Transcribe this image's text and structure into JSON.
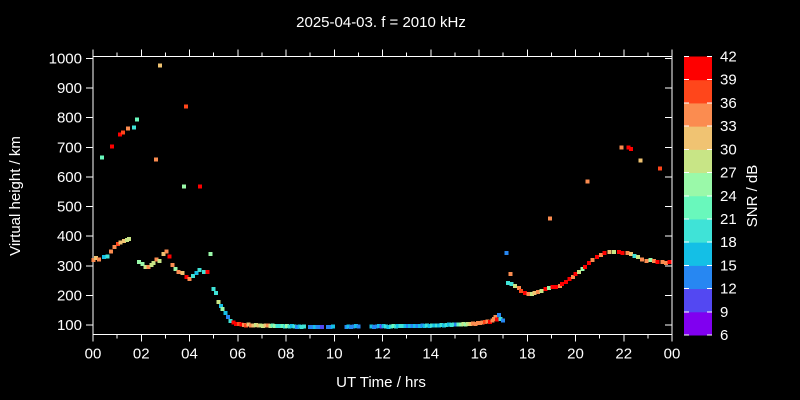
{
  "window": {
    "background_color": "#000000",
    "foreground_color": "#ffffff"
  },
  "chart_data": {
    "type": "scatter",
    "title": "2025-04-03. f = 2010 kHz",
    "date": "2025-04-03",
    "frequency_khz": 2010,
    "xlabel": "UT Time / hrs",
    "ylabel": "Virtual height / km",
    "x_range_hours": [
      0,
      24
    ],
    "x_major_tick_hours": [
      0,
      2,
      4,
      6,
      8,
      10,
      12,
      14,
      16,
      18,
      20,
      22,
      24
    ],
    "x_major_tick_labels": [
      "00",
      "02",
      "04",
      "06",
      "08",
      "10",
      "12",
      "14",
      "16",
      "18",
      "20",
      "22",
      "00"
    ],
    "x_minor_tick_hours": [
      1,
      3,
      5,
      7,
      9,
      11,
      13,
      15,
      17,
      19,
      21,
      23
    ],
    "y_tick_km": [
      100,
      200,
      300,
      400,
      500,
      600,
      700,
      800,
      900,
      1000
    ],
    "ylim_km": [
      70,
      1008
    ],
    "grid": false,
    "legend_position": "none",
    "colorbar": {
      "label": "SNR / dB",
      "tick_values": [
        6,
        9,
        12,
        15,
        18,
        21,
        24,
        27,
        30,
        33,
        36,
        39,
        42
      ],
      "bin_size_db": 3,
      "bin_colors_low_to_high": [
        "#8000F0",
        "#5348F2",
        "#2787F2",
        "#14BFE6",
        "#3FE3D7",
        "#69F8BC",
        "#9AF9A9",
        "#C8E586",
        "#F0C372",
        "#FB8C50",
        "#FF461B",
        "#FE0000"
      ]
    },
    "points_t_km_snr": [
      [
        0.02,
        319,
        34
      ],
      [
        0.12,
        326,
        31
      ],
      [
        0.25,
        322,
        34
      ],
      [
        0.37,
        666,
        22
      ],
      [
        0.46,
        329,
        16
      ],
      [
        0.6,
        332,
        19
      ],
      [
        0.75,
        348,
        34
      ],
      [
        0.79,
        703,
        40
      ],
      [
        0.9,
        363,
        34
      ],
      [
        1.03,
        373,
        37
      ],
      [
        1.12,
        743,
        40
      ],
      [
        1.15,
        378,
        31
      ],
      [
        1.24,
        750,
        37
      ],
      [
        1.28,
        383,
        31
      ],
      [
        1.4,
        387,
        28
      ],
      [
        1.45,
        764,
        34
      ],
      [
        1.49,
        390,
        28
      ],
      [
        1.7,
        767,
        19
      ],
      [
        1.82,
        794,
        22
      ],
      [
        1.9,
        312,
        25
      ],
      [
        2.06,
        306,
        25
      ],
      [
        2.18,
        296,
        28
      ],
      [
        2.3,
        296,
        34
      ],
      [
        2.42,
        302,
        28
      ],
      [
        2.51,
        309,
        28
      ],
      [
        2.61,
        659,
        34
      ],
      [
        2.63,
        322,
        34
      ],
      [
        2.76,
        316,
        28
      ],
      [
        2.78,
        976,
        31
      ],
      [
        2.92,
        339,
        31
      ],
      [
        3.05,
        349,
        34
      ],
      [
        3.17,
        332,
        40
      ],
      [
        3.3,
        302,
        34
      ],
      [
        3.42,
        289,
        25
      ],
      [
        3.55,
        279,
        34
      ],
      [
        3.7,
        276,
        31
      ],
      [
        3.77,
        568,
        25
      ],
      [
        3.86,
        838,
        37
      ],
      [
        3.87,
        262,
        40
      ],
      [
        4.0,
        256,
        34
      ],
      [
        4.15,
        266,
        19
      ],
      [
        4.3,
        276,
        16
      ],
      [
        4.42,
        286,
        19
      ],
      [
        4.43,
        568,
        40
      ],
      [
        4.6,
        279,
        19
      ],
      [
        4.75,
        279,
        40
      ],
      [
        4.88,
        339,
        25
      ],
      [
        5.0,
        221,
        19
      ],
      [
        5.1,
        208,
        19
      ],
      [
        5.2,
        178,
        28
      ],
      [
        5.3,
        164,
        16
      ],
      [
        5.37,
        154,
        25
      ],
      [
        5.5,
        140,
        16
      ],
      [
        5.6,
        127,
        13
      ],
      [
        5.7,
        113,
        19
      ],
      [
        5.83,
        108,
        40
      ],
      [
        5.93,
        103,
        40
      ],
      [
        6.05,
        103,
        37
      ],
      [
        6.15,
        101,
        40
      ],
      [
        6.25,
        100,
        34
      ],
      [
        6.35,
        99,
        37
      ],
      [
        6.45,
        101,
        31
      ],
      [
        6.55,
        99,
        34
      ],
      [
        6.65,
        98,
        31
      ],
      [
        6.75,
        100,
        28
      ],
      [
        6.85,
        99,
        31
      ],
      [
        6.95,
        98,
        28
      ],
      [
        7.05,
        97,
        28
      ],
      [
        7.15,
        99,
        31
      ],
      [
        7.25,
        98,
        34
      ],
      [
        7.35,
        97,
        28
      ],
      [
        7.45,
        98,
        22
      ],
      [
        7.55,
        97,
        25
      ],
      [
        7.65,
        96,
        19
      ],
      [
        7.75,
        97,
        19
      ],
      [
        7.85,
        96,
        22
      ],
      [
        7.95,
        95,
        19
      ],
      [
        8.05,
        96,
        25
      ],
      [
        8.15,
        95,
        19
      ],
      [
        8.25,
        96,
        16
      ],
      [
        8.35,
        95,
        19
      ],
      [
        8.45,
        94,
        13
      ],
      [
        8.55,
        95,
        16
      ],
      [
        8.65,
        94,
        19
      ],
      [
        8.75,
        95,
        19
      ],
      [
        9.0,
        94,
        13
      ],
      [
        9.1,
        93,
        13
      ],
      [
        9.2,
        94,
        16
      ],
      [
        9.3,
        93,
        13
      ],
      [
        9.4,
        94,
        13
      ],
      [
        9.5,
        93,
        10
      ],
      [
        9.75,
        93,
        13
      ],
      [
        9.85,
        94,
        13
      ],
      [
        9.95,
        95,
        16
      ],
      [
        10.5,
        94,
        13
      ],
      [
        10.6,
        95,
        16
      ],
      [
        10.7,
        94,
        13
      ],
      [
        10.8,
        95,
        13
      ],
      [
        10.9,
        96,
        16
      ],
      [
        11.0,
        95,
        13
      ],
      [
        11.55,
        95,
        16
      ],
      [
        11.65,
        94,
        13
      ],
      [
        11.75,
        95,
        13
      ],
      [
        11.85,
        96,
        16
      ],
      [
        11.95,
        95,
        10
      ],
      [
        12.05,
        96,
        16
      ],
      [
        12.15,
        95,
        19
      ],
      [
        12.25,
        94,
        16
      ],
      [
        12.35,
        95,
        19
      ],
      [
        12.45,
        96,
        22
      ],
      [
        12.55,
        95,
        19
      ],
      [
        12.65,
        96,
        16
      ],
      [
        12.75,
        97,
        19
      ],
      [
        12.85,
        96,
        19
      ],
      [
        12.95,
        97,
        16
      ],
      [
        13.05,
        96,
        13
      ],
      [
        13.15,
        97,
        16
      ],
      [
        13.25,
        96,
        13
      ],
      [
        13.35,
        97,
        16
      ],
      [
        13.45,
        96,
        13
      ],
      [
        13.55,
        97,
        16
      ],
      [
        13.65,
        98,
        13
      ],
      [
        13.75,
        97,
        16
      ],
      [
        13.85,
        98,
        19
      ],
      [
        13.95,
        97,
        16
      ],
      [
        14.05,
        98,
        19
      ],
      [
        14.15,
        99,
        16
      ],
      [
        14.25,
        98,
        19
      ],
      [
        14.35,
        99,
        16
      ],
      [
        14.45,
        100,
        19
      ],
      [
        14.55,
        99,
        16
      ],
      [
        14.65,
        100,
        19
      ],
      [
        14.75,
        101,
        16
      ],
      [
        14.85,
        100,
        19
      ],
      [
        14.95,
        101,
        19
      ],
      [
        15.05,
        102,
        13
      ],
      [
        15.15,
        101,
        22
      ],
      [
        15.25,
        102,
        25
      ],
      [
        15.35,
        103,
        28
      ],
      [
        15.45,
        102,
        25
      ],
      [
        15.55,
        103,
        28
      ],
      [
        15.65,
        104,
        31
      ],
      [
        15.75,
        105,
        34
      ],
      [
        15.85,
        104,
        34
      ],
      [
        15.95,
        106,
        34
      ],
      [
        16.05,
        107,
        34
      ],
      [
        16.15,
        108,
        34
      ],
      [
        16.25,
        110,
        37
      ],
      [
        16.35,
        112,
        34
      ],
      [
        16.45,
        110,
        40
      ],
      [
        16.55,
        115,
        34
      ],
      [
        16.62,
        121,
        34
      ],
      [
        16.68,
        127,
        34
      ],
      [
        16.75,
        118,
        40
      ],
      [
        16.82,
        133,
        13
      ],
      [
        16.9,
        121,
        19
      ],
      [
        17.0,
        115,
        13
      ],
      [
        17.15,
        343,
        13
      ],
      [
        17.2,
        242,
        19
      ],
      [
        17.3,
        272,
        34
      ],
      [
        17.35,
        238,
        19
      ],
      [
        17.5,
        232,
        28
      ],
      [
        17.65,
        225,
        34
      ],
      [
        17.75,
        215,
        37
      ],
      [
        17.9,
        208,
        40
      ],
      [
        18.05,
        205,
        34
      ],
      [
        18.2,
        205,
        28
      ],
      [
        18.3,
        208,
        31
      ],
      [
        18.45,
        211,
        34
      ],
      [
        18.6,
        215,
        28
      ],
      [
        18.75,
        221,
        40
      ],
      [
        18.9,
        225,
        25
      ],
      [
        18.95,
        460,
        34
      ],
      [
        19.05,
        228,
        40
      ],
      [
        19.2,
        228,
        40
      ],
      [
        19.35,
        232,
        34
      ],
      [
        19.45,
        238,
        40
      ],
      [
        19.6,
        245,
        40
      ],
      [
        19.75,
        255,
        40
      ],
      [
        19.9,
        262,
        34
      ],
      [
        20.0,
        272,
        40
      ],
      [
        20.15,
        279,
        28
      ],
      [
        20.3,
        289,
        25
      ],
      [
        20.4,
        296,
        40
      ],
      [
        20.5,
        585,
        34
      ],
      [
        20.55,
        309,
        40
      ],
      [
        20.7,
        319,
        34
      ],
      [
        20.9,
        329,
        40
      ],
      [
        21.05,
        336,
        34
      ],
      [
        21.2,
        343,
        40
      ],
      [
        21.4,
        346,
        31
      ],
      [
        21.6,
        346,
        28
      ],
      [
        21.8,
        346,
        40
      ],
      [
        21.9,
        700,
        34
      ],
      [
        21.95,
        343,
        40
      ],
      [
        22.15,
        343,
        34
      ],
      [
        22.2,
        700,
        40
      ],
      [
        22.3,
        694,
        40
      ],
      [
        22.3,
        339,
        31
      ],
      [
        22.45,
        333,
        19
      ],
      [
        22.6,
        329,
        28
      ],
      [
        22.7,
        656,
        31
      ],
      [
        22.75,
        322,
        34
      ],
      [
        22.95,
        316,
        34
      ],
      [
        23.1,
        319,
        25
      ],
      [
        23.25,
        316,
        34
      ],
      [
        23.4,
        312,
        40
      ],
      [
        23.5,
        629,
        37
      ],
      [
        23.6,
        312,
        34
      ],
      [
        23.75,
        309,
        34
      ],
      [
        23.9,
        312,
        40
      ]
    ]
  }
}
